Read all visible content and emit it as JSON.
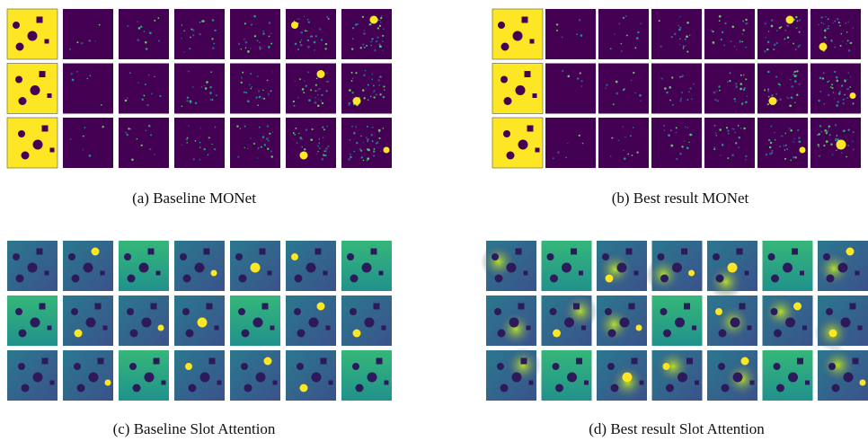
{
  "figure": {
    "panels": [
      {
        "caption": "(a) Baseline MONet"
      },
      {
        "caption": "(b) Best result MONet"
      },
      {
        "caption": "(c) Baseline Slot Attention"
      },
      {
        "caption": "(d) Best result Slot Attention"
      }
    ]
  }
}
